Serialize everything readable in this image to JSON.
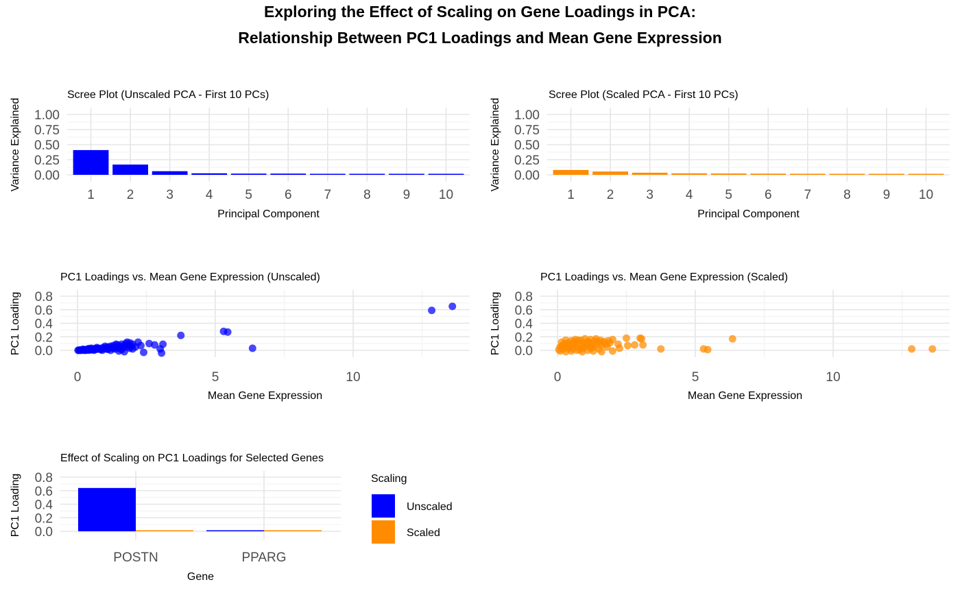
{
  "title_line1": "Exploring the Effect of Scaling on Gene Loadings in PCA:",
  "title_line2": "Relationship Between PC1 Loadings and Mean Gene Expression",
  "colors": {
    "unscaled": "#0000FF",
    "scaled": "#FF8C00"
  },
  "chart_data": [
    {
      "type": "bar",
      "title": "Scree Plot (Unscaled PCA - First 10 PCs)",
      "xlabel": "Principal Component",
      "ylabel": "Variance Explained",
      "categories": [
        "1",
        "2",
        "3",
        "4",
        "5",
        "6",
        "7",
        "8",
        "9",
        "10"
      ],
      "values": [
        0.41,
        0.17,
        0.06,
        0.025,
        0.02,
        0.02,
        0.015,
        0.012,
        0.01,
        0.01
      ],
      "ylim": [
        0,
        1
      ],
      "yticks": [
        "0.00",
        "0.25",
        "0.50",
        "0.75",
        "1.00"
      ],
      "color": "unscaled",
      "grid": true
    },
    {
      "type": "bar",
      "title": "Scree Plot (Scaled PCA - First 10 PCs)",
      "xlabel": "Principal Component",
      "ylabel": "Variance Explained",
      "categories": [
        "1",
        "2",
        "3",
        "4",
        "5",
        "6",
        "7",
        "8",
        "9",
        "10"
      ],
      "values": [
        0.08,
        0.055,
        0.035,
        0.025,
        0.022,
        0.02,
        0.018,
        0.015,
        0.013,
        0.012
      ],
      "ylim": [
        0,
        1
      ],
      "yticks": [
        "0.00",
        "0.25",
        "0.50",
        "0.75",
        "1.00"
      ],
      "color": "scaled",
      "grid": true
    },
    {
      "type": "scatter",
      "title": "PC1 Loadings vs. Mean Gene Expression (Unscaled)",
      "xlabel": "Mean Gene Expression",
      "ylabel": "PC1 Loading",
      "xlim": [
        0,
        14
      ],
      "ylim": [
        0,
        0.8
      ],
      "xticks": [
        "0",
        "5",
        "10"
      ],
      "yticks": [
        "0.0",
        "0.2",
        "0.4",
        "0.6",
        "0.8"
      ],
      "color": "unscaled",
      "grid": true,
      "points": [
        [
          0.02,
          0.0
        ],
        [
          0.05,
          0.002
        ],
        [
          0.08,
          0.001
        ],
        [
          0.1,
          0.004
        ],
        [
          0.12,
          0.002
        ],
        [
          0.15,
          0.005
        ],
        [
          0.18,
          0.003
        ],
        [
          0.2,
          0.006
        ],
        [
          0.22,
          0.002
        ],
        [
          0.25,
          0.008
        ],
        [
          0.28,
          0.004
        ],
        [
          0.3,
          0.01
        ],
        [
          0.33,
          0.005
        ],
        [
          0.35,
          0.012
        ],
        [
          0.38,
          0.006
        ],
        [
          0.4,
          0.015
        ],
        [
          0.42,
          0.003
        ],
        [
          0.45,
          0.01
        ],
        [
          0.48,
          0.018
        ],
        [
          0.5,
          0.008
        ],
        [
          0.55,
          0.02
        ],
        [
          0.6,
          0.012
        ],
        [
          0.65,
          0.025
        ],
        [
          0.7,
          0.015
        ],
        [
          0.75,
          0.03
        ],
        [
          0.8,
          0.02
        ],
        [
          0.85,
          0.01
        ],
        [
          0.9,
          0.035
        ],
        [
          0.95,
          0.025
        ],
        [
          1.0,
          0.04
        ],
        [
          1.05,
          0.02
        ],
        [
          1.1,
          0.05
        ],
        [
          1.15,
          0.03
        ],
        [
          1.2,
          0.06
        ],
        [
          1.25,
          0.04
        ],
        [
          1.3,
          0.07
        ],
        [
          1.35,
          0.02
        ],
        [
          1.4,
          0.05
        ],
        [
          1.45,
          0.08
        ],
        [
          1.5,
          0.03
        ],
        [
          1.55,
          0.06
        ],
        [
          1.6,
          0.09
        ],
        [
          1.65,
          0.04
        ],
        [
          1.7,
          0.07
        ],
        [
          1.75,
          0.1
        ],
        [
          1.8,
          0.05
        ],
        [
          1.85,
          0.08
        ],
        [
          1.9,
          0.11
        ],
        [
          1.95,
          0.06
        ],
        [
          2.0,
          0.09
        ],
        [
          1.5,
          -0.01
        ],
        [
          1.7,
          -0.02
        ],
        [
          2.0,
          0.02
        ],
        [
          2.2,
          0.12
        ],
        [
          2.3,
          0.07
        ],
        [
          2.4,
          -0.03
        ],
        [
          2.6,
          0.1
        ],
        [
          2.8,
          0.08
        ],
        [
          3.0,
          0.02
        ],
        [
          3.05,
          -0.04
        ],
        [
          3.1,
          0.09
        ],
        [
          3.75,
          0.22
        ],
        [
          5.3,
          0.28
        ],
        [
          5.45,
          0.27
        ],
        [
          6.35,
          0.03
        ],
        [
          12.85,
          0.59
        ],
        [
          13.6,
          0.65
        ],
        [
          0.3,
          0.0
        ],
        [
          0.6,
          0.001
        ],
        [
          0.9,
          0.002
        ],
        [
          1.2,
          0.0
        ],
        [
          0.7,
          0.04
        ],
        [
          1.0,
          0.06
        ],
        [
          1.3,
          0.03
        ],
        [
          1.6,
          0.01
        ],
        [
          1.9,
          0.03
        ],
        [
          2.1,
          0.05
        ],
        [
          0.5,
          0.03
        ],
        [
          0.2,
          0.015
        ],
        [
          0.4,
          0.025
        ],
        [
          1.1,
          0.015
        ],
        [
          1.4,
          0.09
        ],
        [
          1.8,
          0.12
        ]
      ]
    },
    {
      "type": "scatter",
      "title": "PC1 Loadings vs. Mean Gene Expression (Scaled)",
      "xlabel": "Mean Gene Expression",
      "ylabel": "PC1 Loading",
      "xlim": [
        0,
        14
      ],
      "ylim": [
        0,
        0.8
      ],
      "xticks": [
        "0",
        "5",
        "10"
      ],
      "yticks": [
        "0.0",
        "0.2",
        "0.4",
        "0.6",
        "0.8"
      ],
      "color": "scaled",
      "grid": true,
      "points": [
        [
          0.05,
          0.01
        ],
        [
          0.1,
          0.05
        ],
        [
          0.15,
          0.12
        ],
        [
          0.2,
          0.02
        ],
        [
          0.25,
          0.09
        ],
        [
          0.3,
          0.15
        ],
        [
          0.35,
          0.04
        ],
        [
          0.4,
          0.11
        ],
        [
          0.45,
          0.07
        ],
        [
          0.5,
          0.14
        ],
        [
          0.55,
          0.02
        ],
        [
          0.6,
          0.1
        ],
        [
          0.65,
          0.16
        ],
        [
          0.7,
          0.05
        ],
        [
          0.75,
          0.12
        ],
        [
          0.8,
          0.08
        ],
        [
          0.85,
          0.15
        ],
        [
          0.9,
          0.03
        ],
        [
          0.95,
          0.11
        ],
        [
          1.0,
          0.17
        ],
        [
          1.05,
          0.06
        ],
        [
          1.1,
          0.13
        ],
        [
          1.15,
          0.09
        ],
        [
          1.2,
          0.16
        ],
        [
          1.25,
          0.04
        ],
        [
          1.3,
          0.1
        ],
        [
          1.35,
          0.14
        ],
        [
          1.4,
          0.07
        ],
        [
          1.45,
          0.12
        ],
        [
          1.5,
          0.02
        ],
        [
          1.55,
          0.15
        ],
        [
          1.6,
          0.08
        ],
        [
          1.7,
          0.13
        ],
        [
          1.8,
          0.05
        ],
        [
          1.9,
          0.11
        ],
        [
          2.0,
          0.16
        ],
        [
          0.1,
          -0.01
        ],
        [
          0.3,
          -0.02
        ],
        [
          0.5,
          -0.01
        ],
        [
          0.7,
          0.0
        ],
        [
          0.9,
          -0.02
        ],
        [
          1.1,
          0.0
        ],
        [
          1.3,
          -0.01
        ],
        [
          1.6,
          -0.02
        ],
        [
          2.0,
          -0.01
        ],
        [
          2.2,
          0.09
        ],
        [
          2.25,
          0.03
        ],
        [
          2.5,
          0.18
        ],
        [
          2.55,
          0.07
        ],
        [
          2.8,
          0.08
        ],
        [
          3.0,
          0.18
        ],
        [
          3.05,
          0.17
        ],
        [
          3.1,
          0.08
        ],
        [
          3.75,
          0.02
        ],
        [
          5.3,
          0.02
        ],
        [
          5.45,
          0.01
        ],
        [
          6.35,
          0.17
        ],
        [
          12.85,
          0.02
        ],
        [
          13.6,
          0.02
        ],
        [
          0.2,
          0.08
        ],
        [
          0.4,
          0.03
        ],
        [
          0.6,
          0.13
        ],
        [
          0.8,
          0.01
        ],
        [
          1.0,
          0.09
        ],
        [
          1.2,
          0.03
        ],
        [
          1.4,
          0.17
        ],
        [
          1.6,
          0.12
        ],
        [
          0.15,
          0.06
        ],
        [
          0.35,
          0.1
        ],
        [
          0.55,
          0.07
        ],
        [
          0.75,
          0.15
        ],
        [
          0.95,
          0.05
        ],
        [
          1.15,
          0.12
        ],
        [
          1.75,
          0.09
        ],
        [
          1.85,
          0.14
        ]
      ]
    },
    {
      "type": "bar",
      "title": "Effect of Scaling on PC1 Loadings for Selected Genes",
      "xlabel": "Gene",
      "ylabel": "PC1 Loading",
      "categories": [
        "POSTN",
        "PPARG"
      ],
      "series": [
        {
          "name": "Unscaled",
          "color": "unscaled",
          "values": [
            0.64,
            0.005
          ]
        },
        {
          "name": "Scaled",
          "color": "scaled",
          "values": [
            0.015,
            0.015
          ]
        }
      ],
      "ylim": [
        0,
        0.8
      ],
      "yticks": [
        "0.0",
        "0.2",
        "0.4",
        "0.6",
        "0.8"
      ],
      "legend_title": "Scaling",
      "legend_position": "right",
      "grid": true
    }
  ]
}
